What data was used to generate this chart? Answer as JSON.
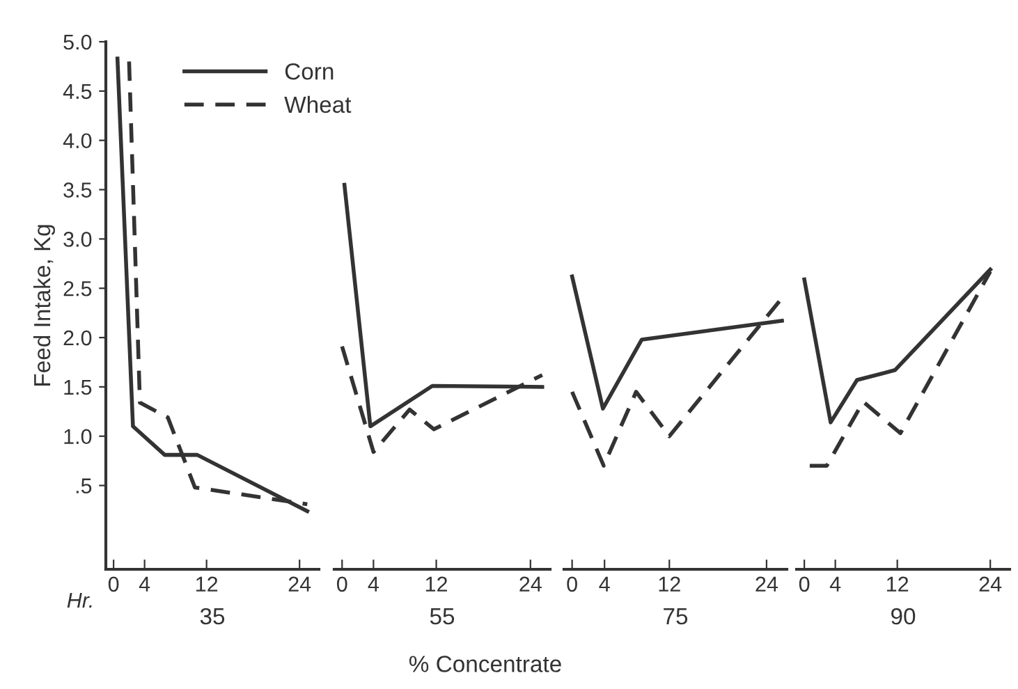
{
  "chart_data": [
    {
      "type": "line",
      "xlabel": "35",
      "ylabel": "Feed Intake, Kg",
      "annotations": [
        "Hr."
      ],
      "legend": "top right",
      "grid": false,
      "tick_labels": true,
      "xlim": [
        -1,
        26.5
      ],
      "xticks": [
        0,
        4,
        12,
        24
      ],
      "ylim": [
        -0.35,
        5.0
      ],
      "yticks": [
        {
          "value": 0.5,
          "label": ".5"
        },
        {
          "value": 1.0,
          "label": "1.0"
        },
        {
          "value": 1.5,
          "label": "1.5"
        },
        {
          "value": 2.0,
          "label": "2.0"
        },
        {
          "value": 2.5,
          "label": "2.5"
        },
        {
          "value": 3.0,
          "label": "3.0"
        },
        {
          "value": 3.5,
          "label": "3.5"
        },
        {
          "value": 4.0,
          "label": "4.0"
        },
        {
          "value": 4.5,
          "label": "4.5"
        },
        {
          "value": 5.0,
          "label": "5.0"
        }
      ],
      "series": [
        {
          "name": "Corn",
          "color": "#333333",
          "line_style": "solid",
          "x": [
            0.5,
            2.5,
            6.6,
            10.8,
            25
          ],
          "values": [
            4.83,
            1.1,
            0.81,
            0.81,
            0.24
          ]
        },
        {
          "name": "Wheat",
          "color": "#333333",
          "line_style": "dashed",
          "x": [
            2,
            3.4,
            7,
            10.5,
            25
          ],
          "values": [
            4.8,
            1.34,
            1.19,
            0.48,
            0.31
          ]
        }
      ]
    },
    {
      "type": "line",
      "xlabel": "55",
      "annotations": [
        "% Concentrate"
      ],
      "tick_labels": "x",
      "grid": false,
      "xlim": [
        -1,
        26.5
      ],
      "xticks": [
        0,
        4,
        12,
        24
      ],
      "ylim": [
        -0.35,
        5.0
      ],
      "series": [
        {
          "color": "#333333",
          "line_style": "solid",
          "x": [
            0.3,
            3.6,
            11.5,
            25.5
          ],
          "values": [
            3.55,
            1.1,
            1.51,
            1.5
          ]
        },
        {
          "color": "#333333",
          "line_style": "dashed",
          "x": [
            0,
            4,
            8.6,
            11.7,
            25.5
          ],
          "values": [
            1.91,
            0.84,
            1.27,
            1.07,
            1.62
          ]
        }
      ]
    },
    {
      "type": "line",
      "xlabel": "75",
      "tick_labels": "x",
      "grid": false,
      "xlim": [
        -1,
        26.5
      ],
      "xticks": [
        0,
        4,
        12,
        24
      ],
      "ylim": [
        -0.35,
        5.0
      ],
      "series": [
        {
          "color": "#333333",
          "line_style": "solid",
          "x": [
            0,
            3.8,
            8.6,
            25.9
          ],
          "values": [
            2.62,
            1.28,
            1.98,
            2.17
          ]
        },
        {
          "color": "#333333",
          "line_style": "dashed",
          "x": [
            0,
            3.9,
            7.9,
            12,
            25.7
          ],
          "values": [
            1.45,
            0.7,
            1.45,
            1.0,
            2.38
          ]
        }
      ]
    },
    {
      "type": "line",
      "xlabel": "90",
      "tick_labels": "x",
      "grid": false,
      "xlim": [
        -1,
        26.5
      ],
      "xticks": [
        0,
        4,
        12,
        24
      ],
      "ylim": [
        -0.35,
        5.0
      ],
      "series": [
        {
          "color": "#333333",
          "line_style": "solid",
          "x": [
            0,
            3.4,
            6.8,
            11.7,
            24
          ],
          "values": [
            2.59,
            1.14,
            1.57,
            1.67,
            2.69
          ]
        },
        {
          "color": "#333333",
          "line_style": "dashed",
          "x": [
            0.7,
            2.9,
            7.6,
            12.4,
            24
          ],
          "values": [
            0.7,
            0.7,
            1.35,
            1.03,
            2.67
          ]
        }
      ]
    }
  ]
}
